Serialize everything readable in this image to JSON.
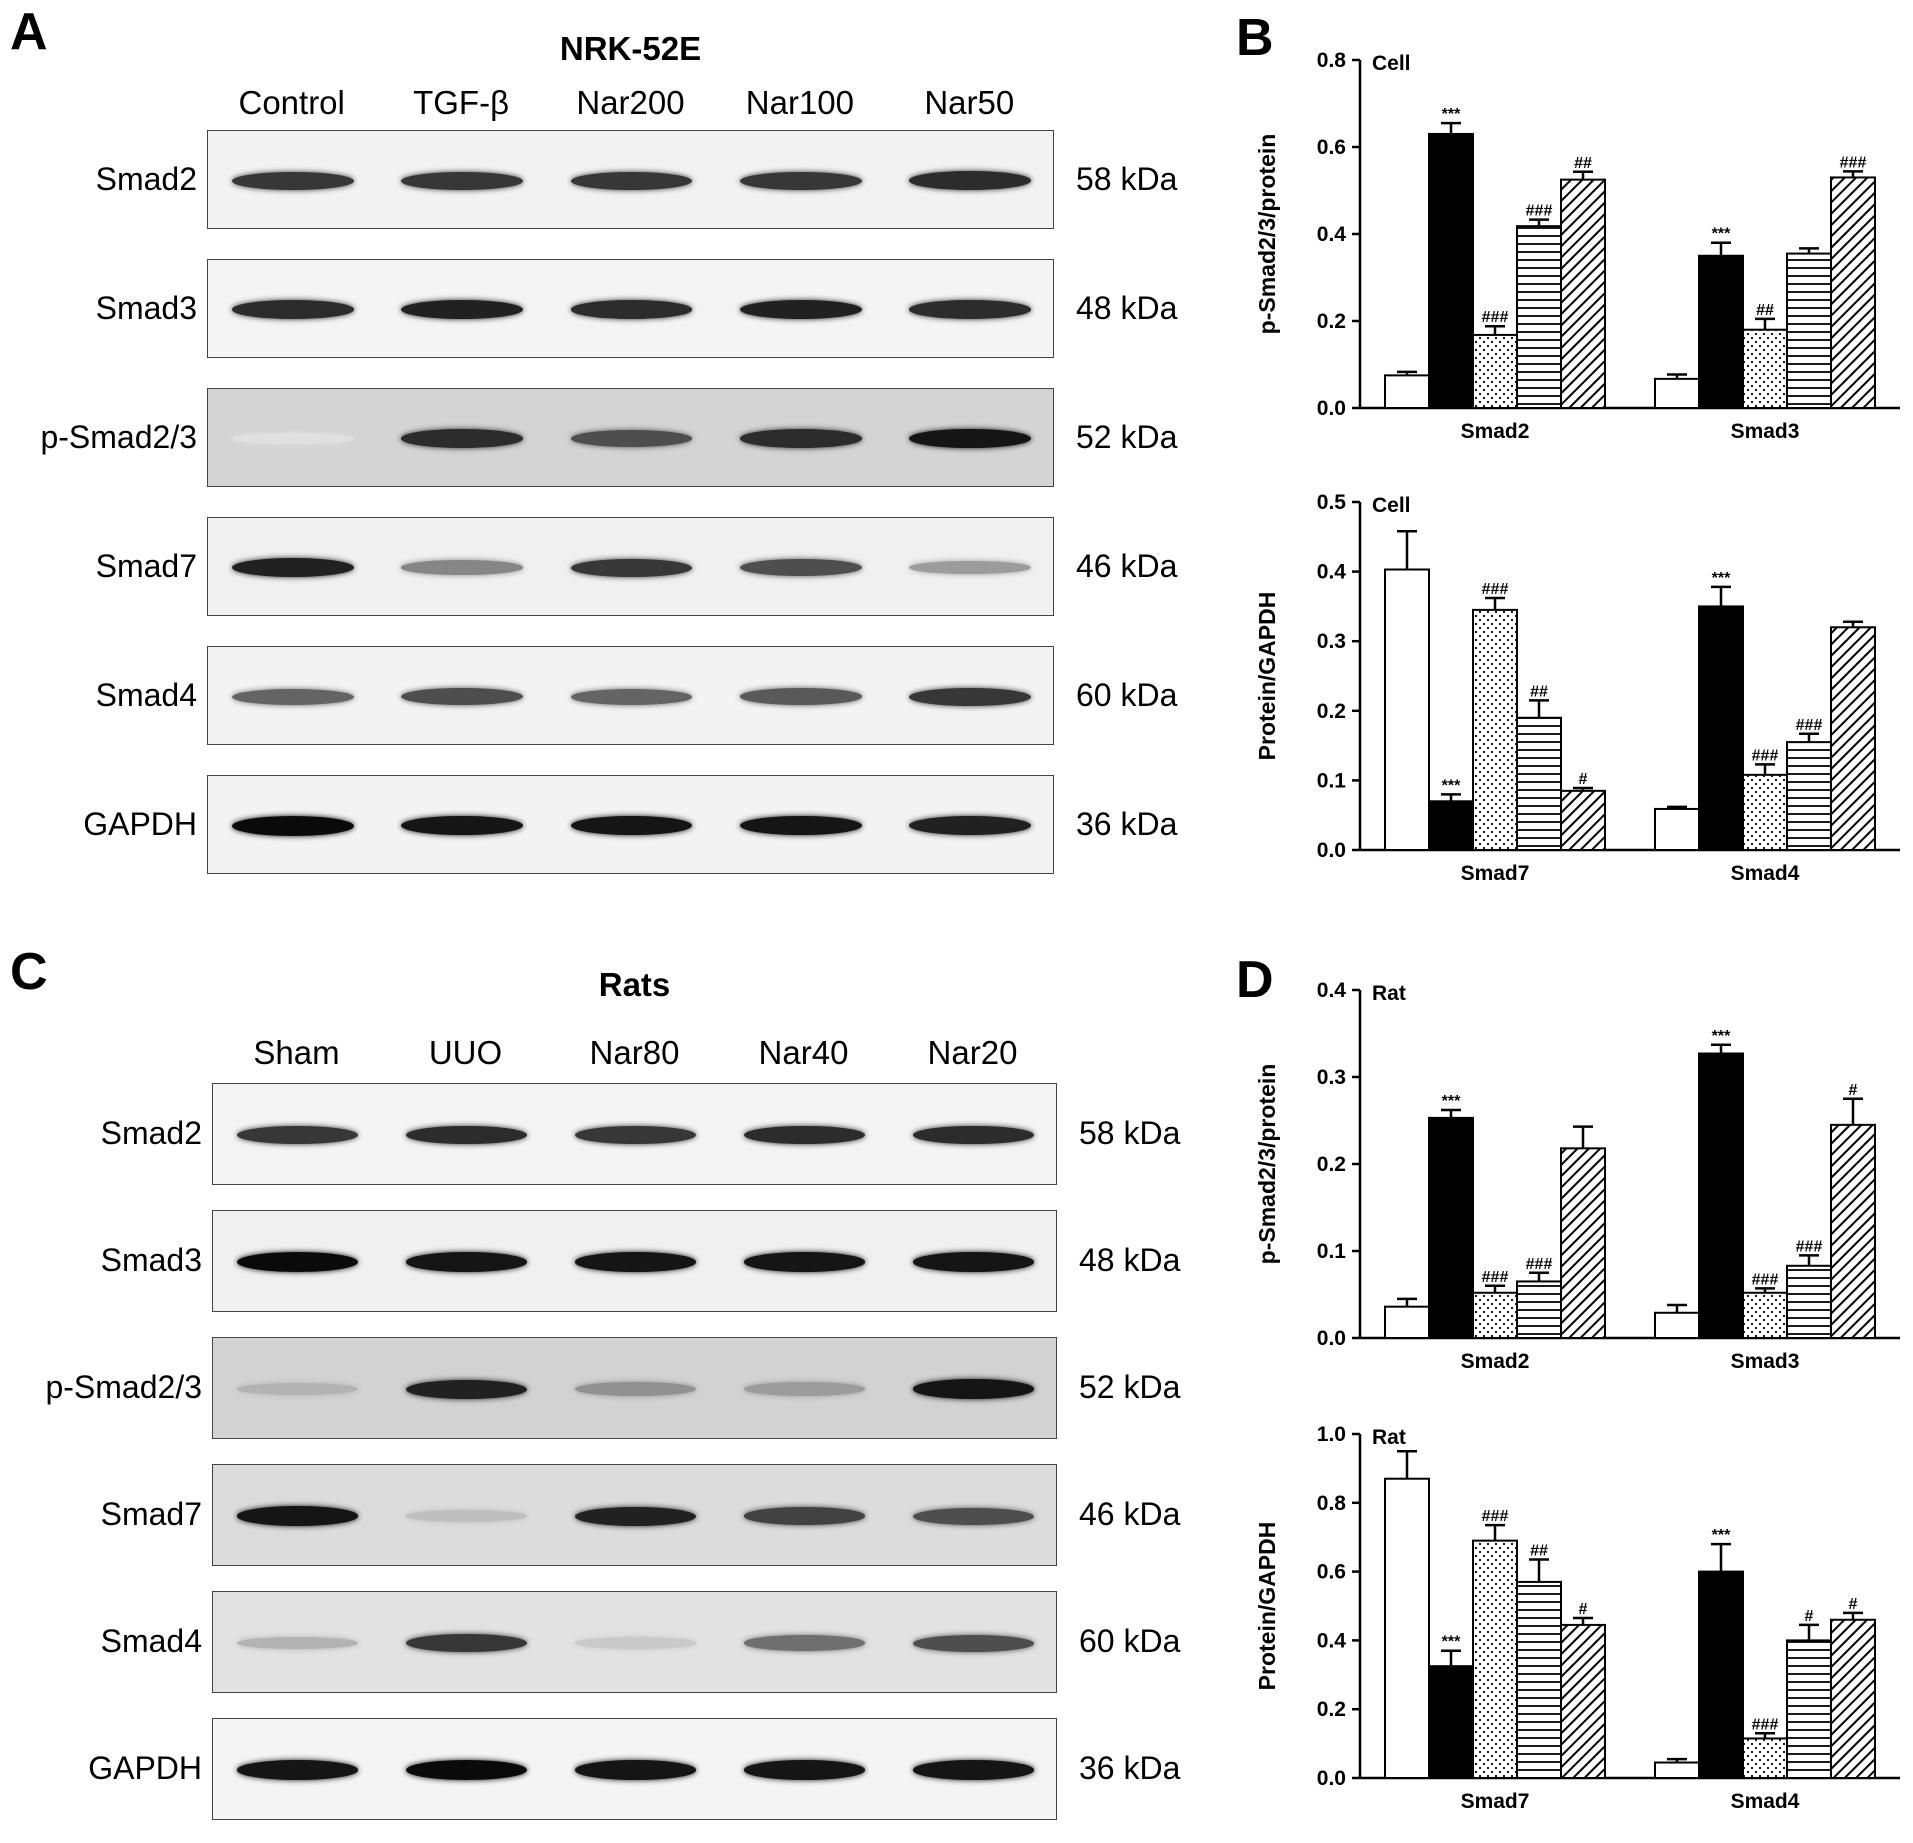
{
  "panels": {
    "a": {
      "letter": "A",
      "title": "NRK-52E",
      "lanes": [
        "Control",
        "TGF-β",
        "Nar200",
        "Nar100",
        "Nar50"
      ],
      "rows": [
        {
          "label": "Smad2",
          "kda": "58 kDa",
          "bg": "#f2f2f2",
          "intensity": [
            0.8,
            0.8,
            0.8,
            0.8,
            0.85
          ]
        },
        {
          "label": "Smad3",
          "kda": "48 kDa",
          "bg": "#f4f4f4",
          "intensity": [
            0.85,
            0.9,
            0.85,
            0.9,
            0.85
          ]
        },
        {
          "label": "p-Smad2/3",
          "kda": "52 kDa",
          "bg": "#d4d4d4",
          "intensity": [
            0.05,
            0.85,
            0.7,
            0.85,
            0.95
          ]
        },
        {
          "label": "Smad7",
          "kda": "46 kDa",
          "bg": "#f0f0f0",
          "intensity": [
            0.9,
            0.45,
            0.8,
            0.7,
            0.35
          ]
        },
        {
          "label": "Smad4",
          "kda": "60 kDa",
          "bg": "#f3f3f3",
          "intensity": [
            0.6,
            0.7,
            0.6,
            0.65,
            0.8
          ]
        },
        {
          "label": "GAPDH",
          "kda": "36 kDa",
          "bg": "#f3f3f3",
          "intensity": [
            1.0,
            0.95,
            0.95,
            0.95,
            0.9
          ]
        }
      ]
    },
    "c": {
      "letter": "C",
      "title": "Rats",
      "lanes": [
        "Sham",
        "UUO",
        "Nar80",
        "Nar40",
        "Nar20"
      ],
      "rows": [
        {
          "label": "Smad2",
          "kda": "58 kDa",
          "bg": "#f4f4f4",
          "intensity": [
            0.8,
            0.85,
            0.8,
            0.85,
            0.85
          ]
        },
        {
          "label": "Smad3",
          "kda": "48 kDa",
          "bg": "#f0f0f0",
          "intensity": [
            1.0,
            0.95,
            0.95,
            0.95,
            0.95
          ]
        },
        {
          "label": "p-Smad2/3",
          "kda": "52 kDa",
          "bg": "#d2d2d2",
          "intensity": [
            0.25,
            0.9,
            0.4,
            0.35,
            0.95
          ]
        },
        {
          "label": "Smad7",
          "kda": "46 kDa",
          "bg": "#dcdcdc",
          "intensity": [
            0.95,
            0.2,
            0.9,
            0.75,
            0.7
          ]
        },
        {
          "label": "Smad4",
          "kda": "60 kDa",
          "bg": "#e2e2e2",
          "intensity": [
            0.25,
            0.8,
            0.15,
            0.55,
            0.7
          ]
        },
        {
          "label": "GAPDH",
          "kda": "36 kDa",
          "bg": "#f4f4f4",
          "intensity": [
            0.95,
            1.0,
            0.95,
            0.95,
            0.95
          ]
        }
      ]
    },
    "b": {
      "letter": "B"
    },
    "d": {
      "letter": "D"
    }
  },
  "chart_data": [
    {
      "type": "bar",
      "panel": "B",
      "annotation": "Cell",
      "ylabel": "p-Smad2/3/protein",
      "ylim": [
        0,
        0.8
      ],
      "yticks": [
        "0.0",
        "0.2",
        "0.4",
        "0.6",
        "0.8"
      ],
      "categories": [
        "Smad2",
        "Smad3"
      ],
      "patterns": [
        "white",
        "black",
        "dots",
        "hlines",
        "diag"
      ],
      "series": [
        {
          "values": [
            0.075,
            0.067
          ],
          "errors": [
            0.008,
            0.01
          ],
          "sig": [
            "",
            ""
          ]
        },
        {
          "values": [
            0.63,
            0.35
          ],
          "errors": [
            0.025,
            0.03
          ],
          "sig": [
            "***",
            "***"
          ]
        },
        {
          "values": [
            0.168,
            0.18
          ],
          "errors": [
            0.02,
            0.025
          ],
          "sig": [
            "###",
            "##"
          ]
        },
        {
          "values": [
            0.418,
            0.355
          ],
          "errors": [
            0.015,
            0.012
          ],
          "sig": [
            "###",
            ""
          ]
        },
        {
          "values": [
            0.525,
            0.53
          ],
          "errors": [
            0.018,
            0.014
          ],
          "sig": [
            "##",
            "###"
          ]
        }
      ]
    },
    {
      "type": "bar",
      "panel": "B",
      "annotation": "Cell",
      "ylabel": "Protein/GAPDH",
      "ylim": [
        0,
        0.5
      ],
      "yticks": [
        "0.0",
        "0.1",
        "0.2",
        "0.3",
        "0.4",
        "0.5"
      ],
      "categories": [
        "Smad7",
        "Smad4"
      ],
      "patterns": [
        "white",
        "black",
        "dots",
        "hlines",
        "diag"
      ],
      "series": [
        {
          "values": [
            0.403,
            0.059
          ],
          "errors": [
            0.055,
            0.003
          ],
          "sig": [
            "",
            ""
          ]
        },
        {
          "values": [
            0.07,
            0.35
          ],
          "errors": [
            0.01,
            0.028
          ],
          "sig": [
            "***",
            "***"
          ]
        },
        {
          "values": [
            0.345,
            0.108
          ],
          "errors": [
            0.017,
            0.015
          ],
          "sig": [
            "###",
            "###"
          ]
        },
        {
          "values": [
            0.19,
            0.155
          ],
          "errors": [
            0.025,
            0.012
          ],
          "sig": [
            "##",
            "###"
          ]
        },
        {
          "values": [
            0.085,
            0.32
          ],
          "errors": [
            0.004,
            0.008
          ],
          "sig": [
            "#",
            ""
          ]
        }
      ]
    },
    {
      "type": "bar",
      "panel": "D",
      "annotation": "Rat",
      "ylabel": "p-Smad2/3/protein",
      "ylim": [
        0,
        0.4
      ],
      "yticks": [
        "0.0",
        "0.1",
        "0.2",
        "0.3",
        "0.4"
      ],
      "categories": [
        "Smad2",
        "Smad3"
      ],
      "patterns": [
        "white",
        "black",
        "dots",
        "hlines",
        "diag"
      ],
      "series": [
        {
          "values": [
            0.036,
            0.029
          ],
          "errors": [
            0.009,
            0.009
          ],
          "sig": [
            "",
            ""
          ]
        },
        {
          "values": [
            0.253,
            0.327
          ],
          "errors": [
            0.009,
            0.01
          ],
          "sig": [
            "***",
            "***"
          ]
        },
        {
          "values": [
            0.052,
            0.052
          ],
          "errors": [
            0.008,
            0.005
          ],
          "sig": [
            "###",
            "###"
          ]
        },
        {
          "values": [
            0.065,
            0.083
          ],
          "errors": [
            0.01,
            0.012
          ],
          "sig": [
            "###",
            "###"
          ]
        },
        {
          "values": [
            0.218,
            0.245
          ],
          "errors": [
            0.025,
            0.03
          ],
          "sig": [
            "",
            "#"
          ]
        }
      ]
    },
    {
      "type": "bar",
      "panel": "D",
      "annotation": "Rat",
      "ylabel": "Protein/GAPDH",
      "ylim": [
        0,
        1.0
      ],
      "yticks": [
        "0.0",
        "0.2",
        "0.4",
        "0.6",
        "0.8",
        "1.0"
      ],
      "categories": [
        "Smad7",
        "Smad4"
      ],
      "patterns": [
        "white",
        "black",
        "dots",
        "hlines",
        "diag"
      ],
      "series": [
        {
          "values": [
            0.87,
            0.045
          ],
          "errors": [
            0.08,
            0.01
          ],
          "sig": [
            "",
            ""
          ]
        },
        {
          "values": [
            0.325,
            0.6
          ],
          "errors": [
            0.045,
            0.08
          ],
          "sig": [
            "***",
            "***"
          ]
        },
        {
          "values": [
            0.69,
            0.115
          ],
          "errors": [
            0.045,
            0.015
          ],
          "sig": [
            "###",
            "###"
          ]
        },
        {
          "values": [
            0.57,
            0.4
          ],
          "errors": [
            0.065,
            0.045
          ],
          "sig": [
            "##",
            "#"
          ]
        },
        {
          "values": [
            0.445,
            0.46
          ],
          "errors": [
            0.02,
            0.02
          ],
          "sig": [
            "#",
            "#"
          ]
        }
      ]
    }
  ]
}
